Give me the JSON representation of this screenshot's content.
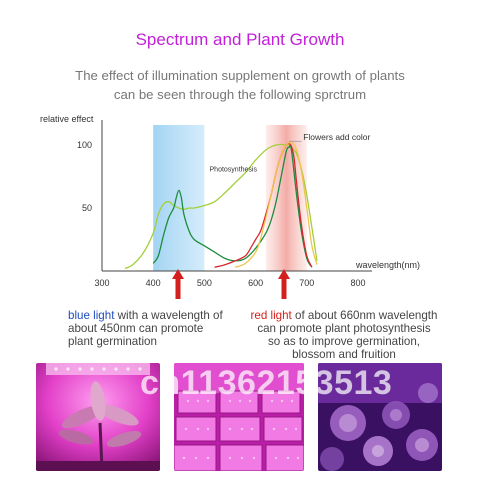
{
  "header": {
    "title": "Spectrum and Plant Growth",
    "subtitle_line1": "The effect of illumination supplement on growth of plants",
    "subtitle_line2": "can be seen through the following sprctrum"
  },
  "chart_data": {
    "type": "line",
    "ylabel": "relative effect",
    "xlabel": "wavelength(nm)",
    "xlim": [
      300,
      800
    ],
    "ylim": [
      0,
      110
    ],
    "x_ticks": [
      300,
      400,
      500,
      600,
      700,
      800
    ],
    "y_ticks": [
      50,
      100
    ],
    "bands": [
      {
        "name": "blue",
        "x_range": [
          400,
          500
        ],
        "color": "#9ed2f2"
      },
      {
        "name": "red",
        "x_range": [
          620,
          700
        ],
        "color": "#f6b2ae"
      }
    ],
    "annotations": [
      {
        "text": "Photosynthesis",
        "x": 510,
        "y": 79
      },
      {
        "text": "Flowers add color",
        "x": 693,
        "y": 104
      }
    ],
    "series": [
      {
        "color": "#a3cf3a",
        "x": [
          345,
          360,
          380,
          400,
          410,
          420,
          430,
          440,
          450,
          460,
          470,
          480,
          500,
          520,
          540,
          560,
          580,
          600,
          620,
          640,
          660,
          670,
          680,
          690,
          700,
          720
        ],
        "y": [
          2,
          5,
          14,
          30,
          45,
          53,
          55,
          52,
          50,
          49,
          50,
          50,
          52,
          55,
          62,
          70,
          78,
          88,
          96,
          100,
          100,
          98,
          93,
          80,
          60,
          8
        ]
      },
      {
        "color": "#1e8c3f",
        "x": [
          400,
          410,
          420,
          430,
          440,
          445,
          450,
          455,
          460,
          470,
          480,
          500,
          520,
          540,
          560,
          580,
          600,
          620,
          630,
          640,
          650,
          660,
          665,
          670,
          680,
          690,
          700,
          710
        ],
        "y": [
          6,
          12,
          28,
          42,
          50,
          58,
          64,
          58,
          45,
          32,
          25,
          20,
          15,
          10,
          8,
          10,
          18,
          30,
          40,
          55,
          75,
          95,
          98,
          96,
          60,
          30,
          10,
          3
        ]
      },
      {
        "color": "#d9262e",
        "x": [
          520,
          540,
          560,
          580,
          590,
          600,
          610,
          620,
          630,
          640,
          650,
          660,
          665,
          670,
          675,
          680,
          690,
          700,
          710
        ],
        "y": [
          3,
          5,
          8,
          12,
          18,
          25,
          32,
          45,
          60,
          78,
          92,
          100,
          101,
          99,
          90,
          70,
          35,
          12,
          3
        ]
      },
      {
        "color": "#f0c44d",
        "x": [
          560,
          580,
          600,
          610,
          620,
          630,
          640,
          650,
          660,
          670,
          680,
          690,
          700,
          710,
          720
        ],
        "y": [
          3,
          6,
          15,
          26,
          42,
          60,
          78,
          92,
          100,
          102,
          96,
          78,
          50,
          20,
          5
        ]
      }
    ]
  },
  "callouts": {
    "left": {
      "highlight": "blue light",
      "line1_rest": " with a wavelength of",
      "line2": "about 450nm can promote",
      "line3": "plant germination"
    },
    "right": {
      "highlight": "red light",
      "line1_rest": " of about 660nm wavelength",
      "line2": "can promote plant photosynthesis",
      "line3": "so as to improve germination,",
      "line4": "blossom and fruition"
    }
  },
  "arrows": {
    "color": "#d41f1f"
  },
  "photos": [
    "seedling-under-grow-light",
    "grow-light-panels-array",
    "succulents-under-grow-light"
  ],
  "watermark": {
    "text": "ch11362153513"
  }
}
